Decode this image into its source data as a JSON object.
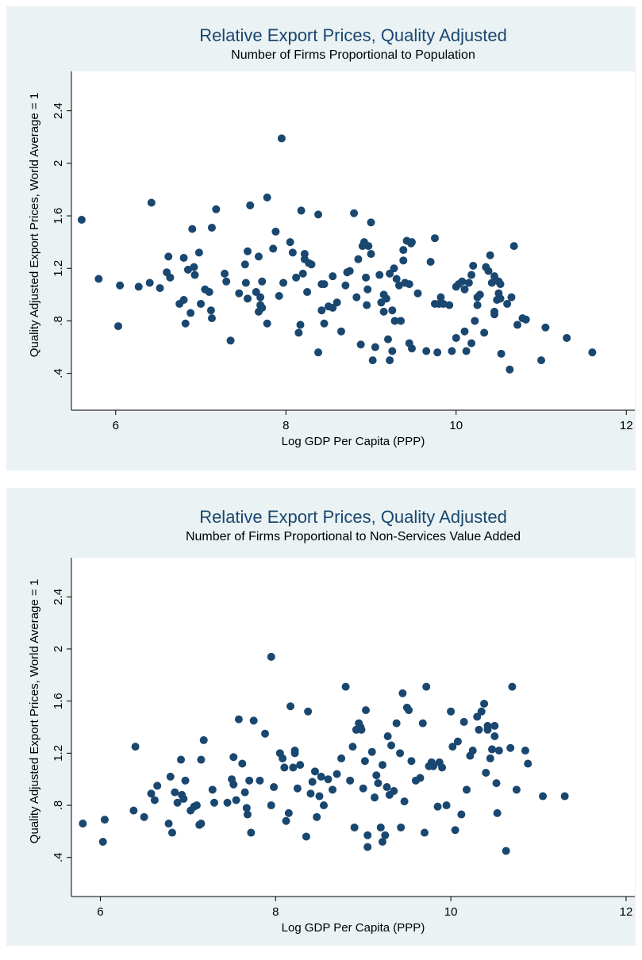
{
  "chart_data": [
    {
      "type": "scatter",
      "title": "Relative Export Prices, Quality Adjusted",
      "subtitle": "Number of Firms Proportional to Population",
      "xlabel": "Log GDP Per Capita (PPP)",
      "ylabel": "Quality Adjusted Export Prices, World Average = 1",
      "color": "#1a476f",
      "xlim": [
        5.48,
        12.1
      ],
      "ylim": [
        0.12,
        2.7
      ],
      "xticks": [
        6,
        8,
        10,
        12
      ],
      "yticks": [
        {
          "value": 0.4,
          "label": ".4"
        },
        {
          "value": 0.8,
          "label": ".8"
        },
        1.2,
        1.6,
        2,
        2.4
      ],
      "x": [
        5.6,
        5.8,
        6.03,
        6.05,
        6.27,
        6.4,
        6.42,
        6.52,
        6.6,
        6.62,
        6.64,
        6.75,
        6.8,
        6.8,
        6.82,
        6.85,
        6.88,
        6.9,
        6.92,
        6.93,
        6.98,
        7.0,
        7.05,
        7.1,
        7.12,
        7.13,
        7.13,
        7.18,
        7.28,
        7.3,
        7.35,
        7.45,
        7.52,
        7.53,
        7.55,
        7.55,
        7.58,
        7.65,
        7.68,
        7.68,
        7.7,
        7.7,
        7.72,
        7.72,
        7.78,
        7.78,
        7.85,
        7.88,
        7.92,
        7.95,
        7.97,
        8.05,
        8.08,
        8.12,
        8.15,
        8.17,
        8.18,
        8.2,
        8.22,
        8.22,
        8.25,
        8.27,
        8.3,
        8.38,
        8.38,
        8.42,
        8.42,
        8.45,
        8.45,
        8.5,
        8.55,
        8.55,
        8.6,
        8.65,
        8.7,
        8.72,
        8.75,
        8.8,
        8.83,
        8.85,
        8.88,
        8.9,
        8.92,
        8.94,
        8.95,
        8.96,
        8.97,
        9.0,
        9.0,
        9.02,
        9.05,
        9.1,
        9.12,
        9.15,
        9.15,
        9.18,
        9.2,
        9.22,
        9.22,
        9.25,
        9.25,
        9.27,
        9.28,
        9.3,
        9.33,
        9.35,
        9.38,
        9.38,
        9.4,
        9.42,
        9.45,
        9.45,
        9.47,
        9.48,
        9.48,
        9.55,
        9.65,
        9.7,
        9.75,
        9.75,
        9.78,
        9.8,
        9.82,
        9.85,
        9.92,
        9.95,
        10.0,
        10.0,
        10.03,
        10.07,
        10.1,
        10.1,
        10.12,
        10.15,
        10.18,
        10.18,
        10.2,
        10.22,
        10.25,
        10.25,
        10.28,
        10.33,
        10.35,
        10.38,
        10.4,
        10.42,
        10.45,
        10.45,
        10.45,
        10.48,
        10.5,
        10.5,
        10.52,
        10.52,
        10.53,
        10.6,
        10.63,
        10.65,
        10.68,
        10.72,
        10.78,
        10.82,
        11.0,
        11.05,
        11.3,
        11.6
      ],
      "values": [
        1.57,
        1.12,
        0.76,
        1.07,
        1.06,
        1.09,
        1.7,
        1.05,
        1.17,
        1.29,
        1.13,
        0.93,
        0.96,
        1.28,
        0.78,
        1.19,
        0.86,
        1.5,
        1.21,
        1.15,
        1.32,
        0.93,
        1.04,
        1.02,
        0.88,
        0.82,
        1.51,
        1.65,
        1.16,
        1.1,
        0.65,
        1.01,
        1.23,
        1.09,
        1.33,
        0.97,
        1.68,
        1.02,
        0.87,
        1.29,
        0.92,
        0.98,
        1.1,
        0.9,
        0.78,
        1.74,
        1.35,
        1.48,
        0.99,
        2.19,
        1.09,
        1.4,
        1.32,
        1.13,
        0.71,
        0.77,
        1.64,
        1.16,
        1.31,
        1.27,
        1.02,
        1.24,
        1.23,
        1.61,
        0.56,
        0.88,
        1.08,
        0.78,
        1.08,
        0.91,
        1.14,
        0.9,
        0.94,
        0.72,
        1.07,
        1.17,
        1.18,
        1.62,
        0.98,
        1.27,
        0.62,
        1.37,
        1.4,
        1.13,
        0.92,
        1.04,
        1.37,
        1.31,
        1.55,
        0.5,
        0.6,
        1.15,
        0.94,
        0.87,
        1.0,
        0.97,
        0.66,
        1.16,
        0.5,
        0.88,
        0.57,
        1.2,
        0.8,
        1.12,
        1.07,
        0.8,
        1.26,
        1.34,
        1.09,
        1.41,
        1.08,
        0.63,
        1.39,
        0.59,
        1.4,
        1.01,
        0.57,
        1.25,
        0.93,
        1.43,
        0.56,
        0.93,
        0.98,
        0.93,
        0.92,
        0.57,
        0.67,
        1.06,
        1.08,
        1.1,
        0.72,
        1.04,
        0.57,
        1.09,
        0.63,
        1.15,
        1.22,
        0.8,
        0.98,
        0.92,
        1.0,
        0.71,
        1.21,
        1.18,
        1.3,
        1.09,
        0.87,
        0.85,
        1.14,
        0.96,
        1.01,
        1.1,
        1.08,
        0.97,
        0.55,
        0.93,
        0.43,
        0.98,
        1.37,
        0.77,
        0.82,
        0.81,
        0.5,
        0.75,
        0.67,
        0.56
      ]
    },
    {
      "type": "scatter",
      "title": "Relative Export Prices, Quality Adjusted",
      "subtitle": "Number of Firms Proportional to Non-Services Value Added",
      "xlabel": "Log GDP Per Capita (PPP)",
      "ylabel": "Quality Adjusted Export Prices, World Average = 1",
      "color": "#1a476f",
      "xlim": [
        5.67,
        12.1
      ],
      "ylim": [
        0.1,
        2.7
      ],
      "xticks": [
        6,
        8,
        10,
        12
      ],
      "yticks": [
        {
          "value": 0.4,
          "label": ".4"
        },
        {
          "value": 0.8,
          "label": ".8"
        },
        1.2,
        1.6,
        2,
        2.4
      ],
      "x": [
        5.8,
        6.03,
        6.05,
        6.38,
        6.4,
        6.5,
        6.58,
        6.62,
        6.65,
        6.78,
        6.8,
        6.82,
        6.85,
        6.88,
        6.92,
        6.93,
        6.95,
        6.97,
        7.03,
        7.07,
        7.1,
        7.13,
        7.15,
        7.15,
        7.18,
        7.28,
        7.3,
        7.45,
        7.5,
        7.52,
        7.52,
        7.55,
        7.58,
        7.62,
        7.65,
        7.67,
        7.68,
        7.7,
        7.72,
        7.75,
        7.82,
        7.88,
        7.95,
        7.95,
        7.98,
        8.05,
        8.08,
        8.1,
        8.12,
        8.15,
        8.17,
        8.2,
        8.22,
        8.22,
        8.25,
        8.28,
        8.35,
        8.37,
        8.4,
        8.42,
        8.45,
        8.47,
        8.5,
        8.52,
        8.55,
        8.6,
        8.65,
        8.7,
        8.75,
        8.8,
        8.85,
        8.88,
        8.9,
        8.92,
        8.95,
        8.97,
        8.98,
        9.0,
        9.02,
        9.03,
        9.05,
        9.05,
        9.1,
        9.13,
        9.15,
        9.17,
        9.2,
        9.22,
        9.22,
        9.25,
        9.27,
        9.28,
        9.3,
        9.32,
        9.35,
        9.38,
        9.42,
        9.43,
        9.45,
        9.47,
        9.5,
        9.52,
        9.55,
        9.6,
        9.65,
        9.68,
        9.7,
        9.72,
        9.75,
        9.78,
        9.8,
        9.85,
        9.87,
        9.9,
        9.95,
        10.0,
        10.02,
        10.05,
        10.08,
        10.12,
        10.15,
        10.18,
        10.22,
        10.25,
        10.3,
        10.32,
        10.35,
        10.38,
        10.4,
        10.42,
        10.42,
        10.45,
        10.47,
        10.5,
        10.5,
        10.52,
        10.53,
        10.55,
        10.63,
        10.68,
        10.7,
        10.75,
        10.85,
        10.88,
        11.05,
        11.3
      ],
      "values": [
        0.66,
        0.52,
        0.69,
        0.76,
        1.25,
        0.71,
        0.89,
        0.84,
        0.95,
        0.66,
        1.02,
        0.59,
        0.9,
        0.82,
        1.15,
        0.88,
        0.85,
        0.99,
        0.76,
        0.79,
        0.8,
        0.65,
        0.66,
        1.15,
        1.3,
        0.92,
        0.82,
        0.82,
        1.0,
        0.96,
        1.17,
        0.84,
        1.46,
        1.12,
        0.9,
        0.78,
        0.73,
        0.99,
        0.59,
        1.45,
        0.99,
        1.35,
        0.8,
        1.94,
        0.94,
        1.2,
        1.16,
        1.09,
        0.68,
        0.74,
        1.56,
        1.09,
        1.2,
        1.22,
        0.93,
        1.11,
        0.56,
        1.52,
        0.89,
        0.98,
        1.06,
        0.71,
        0.87,
        1.02,
        0.8,
        1.0,
        0.92,
        1.04,
        1.16,
        1.71,
        0.99,
        1.25,
        0.63,
        1.38,
        1.43,
        1.4,
        1.38,
        0.93,
        1.14,
        1.53,
        0.48,
        0.57,
        1.21,
        0.86,
        1.03,
        0.97,
        0.63,
        0.52,
        1.11,
        0.57,
        0.94,
        1.33,
        0.88,
        1.26,
        0.91,
        1.43,
        1.2,
        0.63,
        1.66,
        0.83,
        1.55,
        1.53,
        1.14,
        0.99,
        1.01,
        1.43,
        0.59,
        1.71,
        1.1,
        1.13,
        1.1,
        0.79,
        1.13,
        1.09,
        0.8,
        1.52,
        1.25,
        0.61,
        1.29,
        0.73,
        1.44,
        0.92,
        1.18,
        1.22,
        1.48,
        1.38,
        1.52,
        1.58,
        1.05,
        1.41,
        1.38,
        1.16,
        1.23,
        1.41,
        1.33,
        0.97,
        0.74,
        1.22,
        0.45,
        1.24,
        1.71,
        0.92,
        1.22,
        1.12,
        0.87,
        0.87
      ]
    }
  ]
}
